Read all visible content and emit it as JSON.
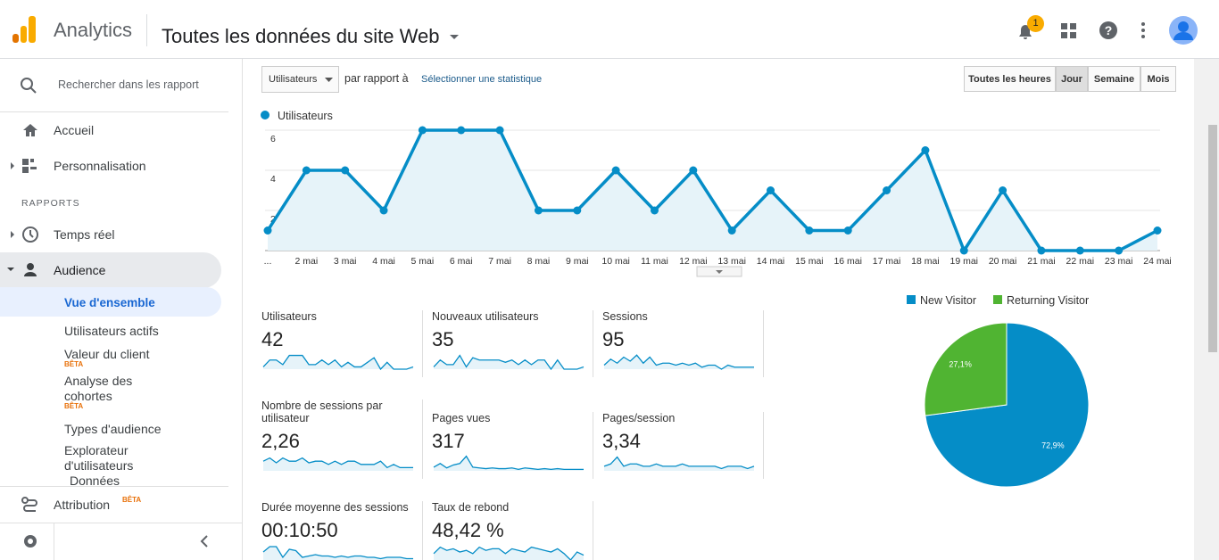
{
  "header": {
    "product": "Analytics",
    "property": "Toutes les données du site Web",
    "notifications": "1"
  },
  "sidebar": {
    "search": "Rechercher dans les rapport",
    "items": [
      "Accueil",
      "Personnalisation"
    ],
    "section": "RAPPORTS",
    "reports": [
      "Temps réel",
      "Audience"
    ],
    "audience_items": [
      {
        "label": "Vue d'ensemble"
      },
      {
        "label": "Utilisateurs actifs"
      },
      {
        "label": "Valeur du client",
        "badge": "BÊTA"
      },
      {
        "label": "Analyse des cohortes",
        "badge": "BÊTA"
      },
      {
        "label": "Types d'audience"
      },
      {
        "label": "Explorateur d'utilisateurs"
      },
      {
        "label": "Données"
      }
    ],
    "attribution": {
      "label": "Attribution",
      "badge": "BÊTA"
    }
  },
  "toolbar": {
    "metric": "Utilisateurs",
    "compare": "par rapport à",
    "select": "Sélectionner une statistique",
    "granularity": [
      "Toutes les heures",
      "Jour",
      "Semaine",
      "Mois"
    ],
    "active": "Jour"
  },
  "chart_data": [
    {
      "type": "line",
      "categories": [
        "...",
        "2 mai",
        "3 mai",
        "4 mai",
        "5 mai",
        "6 mai",
        "7 mai",
        "8 mai",
        "9 mai",
        "10 mai",
        "11 mai",
        "12 mai",
        "13 mai",
        "14 mai",
        "15 mai",
        "16 mai",
        "17 mai",
        "18 mai",
        "19 mai",
        "20 mai",
        "21 mai",
        "22 mai",
        "23 mai",
        "24 mai"
      ],
      "series": [
        {
          "name": "Utilisateurs",
          "color": "#058dc7",
          "values": [
            1,
            4,
            4,
            2,
            6,
            6,
            6,
            2,
            2,
            4,
            2,
            4,
            1,
            3,
            1,
            1,
            3,
            5,
            0,
            3,
            0,
            0,
            0,
            1
          ]
        }
      ],
      "ylim": [
        0,
        6
      ],
      "yticks": [
        2,
        4,
        6
      ],
      "grid": true
    },
    {
      "type": "pie",
      "categories": [
        "New Visitor",
        "Returning Visitor"
      ],
      "values": [
        72.9,
        27.1
      ],
      "value_labels": [
        "72,9%",
        "27,1%"
      ],
      "colors": [
        "#058dc7",
        "#50b432"
      ],
      "legend": "top"
    }
  ],
  "scorecards": [
    {
      "label": "Utilisateurs",
      "value": "42",
      "spark": [
        1,
        4,
        4,
        2,
        6,
        6,
        6,
        2,
        2,
        4,
        2,
        4,
        1,
        3,
        1,
        1,
        3,
        5,
        0,
        3,
        0,
        0,
        0,
        1
      ],
      "spark_ylim": [
        0,
        7
      ]
    },
    {
      "label": "Nouveaux utilisateurs",
      "value": "35",
      "spark": [
        1,
        4,
        2,
        2,
        6,
        1,
        5,
        4,
        4,
        4,
        4,
        3,
        4,
        2,
        4,
        2,
        4,
        4,
        0,
        4,
        0,
        0,
        0,
        1
      ],
      "spark_ylim": [
        0,
        7
      ]
    },
    {
      "label": "Sessions",
      "value": "95",
      "spark": [
        2,
        5,
        3,
        6,
        4,
        7,
        3,
        6,
        2,
        3,
        3,
        2,
        3,
        2,
        3,
        1,
        2,
        2,
        0,
        2,
        1,
        1,
        1,
        1
      ],
      "spark_ylim": [
        0,
        8
      ]
    },
    {
      "label": "Nombre de sessions par utilisateur",
      "value": "2,26",
      "spark": [
        3,
        4,
        2.5,
        4,
        3,
        3,
        4,
        2.5,
        3,
        3,
        2,
        3,
        2,
        3,
        3,
        2,
        2,
        2,
        3,
        1,
        2,
        1,
        1,
        1
      ],
      "spark_ylim": [
        0,
        5
      ]
    },
    {
      "label": "Pages vues",
      "value": "317",
      "spark": [
        5,
        10,
        4,
        8,
        10,
        20,
        5,
        4,
        3,
        4,
        3,
        3,
        4,
        2,
        4,
        3,
        2,
        3,
        2,
        3,
        2,
        2,
        2,
        2
      ],
      "spark_ylim": [
        0,
        22
      ]
    },
    {
      "label": "Pages/session",
      "value": "3,34",
      "spark": [
        2,
        3,
        6,
        2,
        3,
        3,
        2,
        2,
        3,
        2,
        2,
        2,
        3,
        2,
        2,
        2,
        2,
        2,
        1,
        2,
        2,
        2,
        1,
        2
      ],
      "spark_ylim": [
        0,
        7
      ]
    },
    {
      "label": "Durée moyenne des sessions",
      "value": "00:10:50",
      "spark": [
        6,
        10,
        10,
        2,
        8,
        7,
        2,
        3,
        4,
        3,
        3,
        2,
        3,
        2,
        3,
        3,
        2,
        2,
        1,
        2,
        2,
        2,
        1,
        1
      ],
      "spark_ylim": [
        0,
        12
      ]
    },
    {
      "label": "Taux de rebond",
      "value": "48,42 %",
      "spark": [
        40,
        80,
        60,
        70,
        50,
        60,
        40,
        80,
        60,
        70,
        70,
        40,
        70,
        60,
        50,
        80,
        70,
        60,
        50,
        70,
        40,
        0,
        50,
        30
      ],
      "spark_ylim": [
        0,
        100
      ]
    }
  ]
}
